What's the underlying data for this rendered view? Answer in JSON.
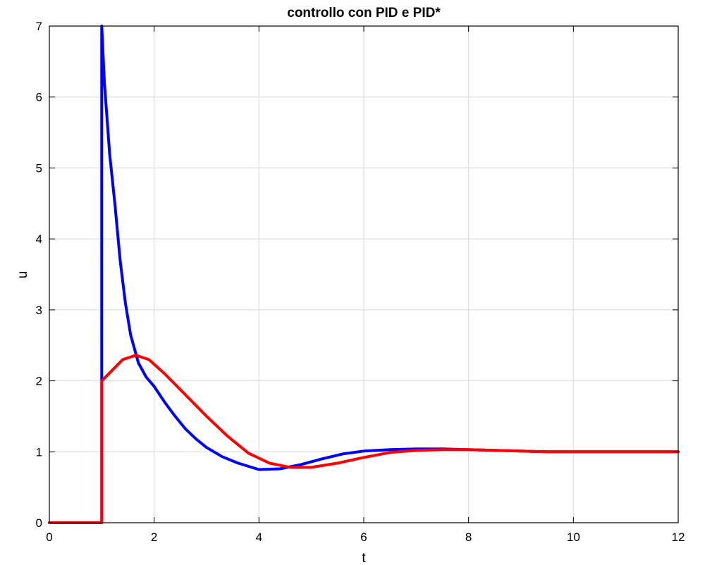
{
  "chart_data": {
    "type": "line",
    "title": "controllo con PID e PID*",
    "xlabel": "t",
    "ylabel": "u",
    "xlim": [
      0,
      12
    ],
    "ylim": [
      0,
      7
    ],
    "xticks": [
      "0",
      "2",
      "4",
      "6",
      "8",
      "10",
      "12"
    ],
    "yticks": [
      "0",
      "1",
      "2",
      "3",
      "4",
      "5",
      "6",
      "7"
    ],
    "grid": true,
    "series": [
      {
        "color": "#0000ff",
        "x": [
          0,
          1.0,
          1.0,
          1.05,
          1.15,
          1.25,
          1.35,
          1.45,
          1.55,
          1.7,
          1.85,
          2.0,
          2.2,
          2.4,
          2.6,
          2.8,
          3.0,
          3.3,
          3.6,
          4.0,
          4.4,
          4.8,
          5.2,
          5.6,
          6.0,
          6.5,
          7.0,
          7.5,
          8.0,
          8.5,
          9.0,
          9.5,
          10.0,
          11.0,
          12.0
        ],
        "y": [
          0,
          0,
          7.0,
          6.2,
          5.2,
          4.5,
          3.7,
          3.1,
          2.65,
          2.25,
          2.05,
          1.92,
          1.7,
          1.5,
          1.32,
          1.18,
          1.06,
          0.93,
          0.84,
          0.75,
          0.76,
          0.82,
          0.9,
          0.97,
          1.01,
          1.03,
          1.04,
          1.04,
          1.03,
          1.02,
          1.01,
          1.0,
          1.0,
          1.0,
          1.0
        ]
      },
      {
        "color": "#ff0000",
        "x": [
          0,
          1.0,
          1.0,
          1.2,
          1.4,
          1.65,
          1.9,
          2.2,
          2.6,
          3.0,
          3.4,
          3.8,
          4.2,
          4.6,
          5.0,
          5.5,
          6.0,
          6.5,
          7.0,
          7.5,
          8.0,
          8.5,
          9.0,
          9.5,
          10.0,
          11.0,
          12.0
        ],
        "y": [
          0,
          0,
          2.0,
          2.15,
          2.3,
          2.36,
          2.3,
          2.1,
          1.8,
          1.5,
          1.22,
          0.98,
          0.84,
          0.78,
          0.78,
          0.84,
          0.92,
          0.99,
          1.02,
          1.03,
          1.03,
          1.02,
          1.01,
          1.0,
          1.0,
          1.0,
          1.0
        ]
      }
    ]
  }
}
